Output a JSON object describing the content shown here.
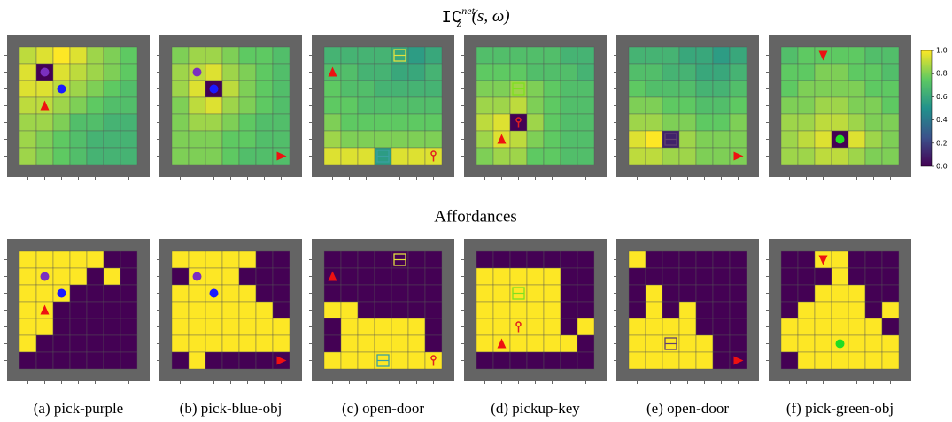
{
  "heatmap": {
    "title_main": "IC",
    "title_sup": "net",
    "title_sub": "z",
    "title_args": "(s, ω)",
    "colorbar": {
      "lim": [
        0,
        1
      ],
      "ticks": [
        {
          "value": 0,
          "label": "0.0"
        },
        {
          "value": 0.2,
          "label": "0.2"
        },
        {
          "value": 0.4,
          "label": "0.4"
        },
        {
          "value": 0.6,
          "label": "0.6"
        },
        {
          "value": 0.8,
          "label": "0.8"
        },
        {
          "value": 1,
          "label": "1.0"
        }
      ]
    },
    "panels": [
      {
        "values": [
          [
            0.9,
            0.95,
            1.0,
            0.95,
            0.85,
            0.8,
            0.75
          ],
          [
            0.95,
            0.0,
            0.95,
            0.9,
            0.85,
            0.8,
            0.75
          ],
          [
            0.95,
            0.95,
            0.9,
            0.85,
            0.8,
            0.75,
            0.7
          ],
          [
            0.9,
            0.9,
            0.85,
            0.8,
            0.75,
            0.7,
            0.7
          ],
          [
            0.85,
            0.85,
            0.8,
            0.7,
            0.7,
            0.65,
            0.65
          ],
          [
            0.85,
            0.8,
            0.75,
            0.7,
            0.65,
            0.65,
            0.65
          ],
          [
            0.85,
            0.8,
            0.75,
            0.7,
            0.65,
            0.65,
            0.65
          ]
        ]
      },
      {
        "values": [
          [
            0.8,
            0.85,
            0.85,
            0.8,
            0.75,
            0.75,
            0.7
          ],
          [
            0.85,
            0.9,
            0.95,
            0.85,
            0.8,
            0.75,
            0.7
          ],
          [
            0.85,
            0.95,
            0.0,
            0.9,
            0.8,
            0.75,
            0.7
          ],
          [
            0.8,
            0.9,
            0.95,
            0.85,
            0.8,
            0.75,
            0.7
          ],
          [
            0.8,
            0.85,
            0.85,
            0.8,
            0.75,
            0.7,
            0.7
          ],
          [
            0.8,
            0.8,
            0.8,
            0.75,
            0.75,
            0.7,
            0.7
          ],
          [
            0.8,
            0.8,
            0.8,
            0.75,
            0.7,
            0.7,
            0.7
          ]
        ]
      },
      {
        "values": [
          [
            0.65,
            0.65,
            0.65,
            0.65,
            0.6,
            0.55,
            0.6
          ],
          [
            0.7,
            0.7,
            0.65,
            0.65,
            0.6,
            0.6,
            0.65
          ],
          [
            0.75,
            0.7,
            0.7,
            0.65,
            0.65,
            0.65,
            0.65
          ],
          [
            0.75,
            0.75,
            0.7,
            0.7,
            0.7,
            0.7,
            0.7
          ],
          [
            0.8,
            0.75,
            0.75,
            0.75,
            0.75,
            0.75,
            0.75
          ],
          [
            0.85,
            0.8,
            0.8,
            0.8,
            0.8,
            0.8,
            0.8
          ],
          [
            0.95,
            0.95,
            0.95,
            0.55,
            0.95,
            0.95,
            0.95
          ]
        ]
      },
      {
        "values": [
          [
            0.7,
            0.7,
            0.7,
            0.7,
            0.7,
            0.65,
            0.65
          ],
          [
            0.75,
            0.75,
            0.75,
            0.7,
            0.7,
            0.7,
            0.65
          ],
          [
            0.8,
            0.8,
            0.85,
            0.8,
            0.75,
            0.7,
            0.7
          ],
          [
            0.85,
            0.85,
            0.9,
            0.8,
            0.75,
            0.7,
            0.7
          ],
          [
            0.9,
            0.95,
            0.0,
            0.85,
            0.75,
            0.7,
            0.7
          ],
          [
            0.85,
            0.95,
            0.9,
            0.8,
            0.75,
            0.7,
            0.7
          ],
          [
            0.8,
            0.85,
            0.85,
            0.75,
            0.75,
            0.7,
            0.7
          ]
        ]
      },
      {
        "values": [
          [
            0.65,
            0.65,
            0.65,
            0.6,
            0.6,
            0.55,
            0.6
          ],
          [
            0.7,
            0.7,
            0.65,
            0.65,
            0.6,
            0.6,
            0.65
          ],
          [
            0.75,
            0.7,
            0.7,
            0.7,
            0.65,
            0.65,
            0.7
          ],
          [
            0.8,
            0.8,
            0.75,
            0.75,
            0.7,
            0.7,
            0.75
          ],
          [
            0.85,
            0.85,
            0.8,
            0.8,
            0.75,
            0.75,
            0.8
          ],
          [
            0.95,
            1.0,
            0.1,
            0.85,
            0.8,
            0.8,
            0.8
          ],
          [
            0.9,
            0.9,
            0.85,
            0.85,
            0.8,
            0.8,
            0.8
          ]
        ]
      },
      {
        "values": [
          [
            0.7,
            0.75,
            0.75,
            0.75,
            0.75,
            0.7,
            0.7
          ],
          [
            0.75,
            0.75,
            0.8,
            0.8,
            0.75,
            0.75,
            0.7
          ],
          [
            0.75,
            0.8,
            0.8,
            0.8,
            0.8,
            0.75,
            0.75
          ],
          [
            0.8,
            0.8,
            0.85,
            0.85,
            0.8,
            0.8,
            0.75
          ],
          [
            0.85,
            0.85,
            0.9,
            0.9,
            0.85,
            0.8,
            0.8
          ],
          [
            0.85,
            0.9,
            0.95,
            0.0,
            0.95,
            0.85,
            0.8
          ],
          [
            0.85,
            0.85,
            0.9,
            0.9,
            0.85,
            0.8,
            0.8
          ]
        ]
      }
    ]
  },
  "affordances": {
    "title": "Affordances",
    "panels": [
      {
        "values": [
          [
            1,
            1,
            1,
            1,
            1,
            0,
            0
          ],
          [
            1,
            1,
            1,
            1,
            0,
            1,
            0
          ],
          [
            1,
            1,
            1,
            0,
            0,
            0,
            0
          ],
          [
            1,
            1,
            0,
            0,
            0,
            0,
            0
          ],
          [
            1,
            1,
            0,
            0,
            0,
            0,
            0
          ],
          [
            1,
            0,
            0,
            0,
            0,
            0,
            0
          ],
          [
            0,
            0,
            0,
            0,
            0,
            0,
            0
          ]
        ]
      },
      {
        "values": [
          [
            1,
            1,
            1,
            1,
            1,
            0,
            0
          ],
          [
            0,
            1,
            1,
            1,
            0,
            0,
            0
          ],
          [
            1,
            1,
            1,
            1,
            1,
            0,
            0
          ],
          [
            1,
            1,
            1,
            1,
            1,
            1,
            0
          ],
          [
            1,
            1,
            1,
            1,
            1,
            1,
            1
          ],
          [
            1,
            1,
            1,
            1,
            1,
            1,
            1
          ],
          [
            0,
            1,
            0,
            0,
            0,
            0,
            0
          ]
        ]
      },
      {
        "values": [
          [
            0,
            0,
            0,
            0,
            0,
            0,
            0
          ],
          [
            0,
            0,
            0,
            0,
            0,
            0,
            0
          ],
          [
            0,
            0,
            0,
            0,
            0,
            0,
            0
          ],
          [
            1,
            1,
            0,
            0,
            0,
            0,
            0
          ],
          [
            0,
            1,
            1,
            1,
            1,
            1,
            0
          ],
          [
            0,
            1,
            1,
            1,
            1,
            1,
            0
          ],
          [
            1,
            1,
            1,
            1,
            1,
            1,
            1
          ]
        ]
      },
      {
        "values": [
          [
            0,
            0,
            0,
            0,
            0,
            0,
            0
          ],
          [
            1,
            1,
            1,
            1,
            1,
            0,
            0
          ],
          [
            1,
            1,
            1,
            1,
            1,
            0,
            0
          ],
          [
            1,
            1,
            1,
            1,
            1,
            0,
            0
          ],
          [
            1,
            1,
            1,
            1,
            1,
            0,
            1
          ],
          [
            1,
            1,
            1,
            1,
            1,
            1,
            0
          ],
          [
            0,
            0,
            0,
            0,
            0,
            0,
            0
          ]
        ]
      },
      {
        "values": [
          [
            1,
            0,
            0,
            0,
            0,
            0,
            0
          ],
          [
            0,
            0,
            0,
            0,
            0,
            0,
            0
          ],
          [
            0,
            1,
            0,
            0,
            0,
            0,
            0
          ],
          [
            0,
            1,
            0,
            1,
            0,
            0,
            0
          ],
          [
            1,
            1,
            1,
            1,
            0,
            0,
            0
          ],
          [
            1,
            1,
            1,
            1,
            1,
            0,
            0
          ],
          [
            1,
            1,
            1,
            1,
            1,
            0,
            0
          ]
        ]
      },
      {
        "values": [
          [
            0,
            0,
            1,
            1,
            0,
            0,
            0
          ],
          [
            0,
            0,
            0,
            1,
            0,
            0,
            0
          ],
          [
            0,
            0,
            1,
            1,
            1,
            0,
            0
          ],
          [
            0,
            1,
            1,
            1,
            1,
            0,
            1
          ],
          [
            1,
            1,
            1,
            1,
            1,
            1,
            0
          ],
          [
            1,
            1,
            1,
            1,
            1,
            1,
            1
          ],
          [
            0,
            1,
            1,
            1,
            1,
            1,
            1
          ]
        ]
      }
    ]
  },
  "captions": [
    "(a) pick-purple",
    "(b) pick-blue-obj",
    "(c) open-door",
    "(d) pickup-key",
    "(e) open-door",
    "(f) pick-green-obj"
  ]
}
